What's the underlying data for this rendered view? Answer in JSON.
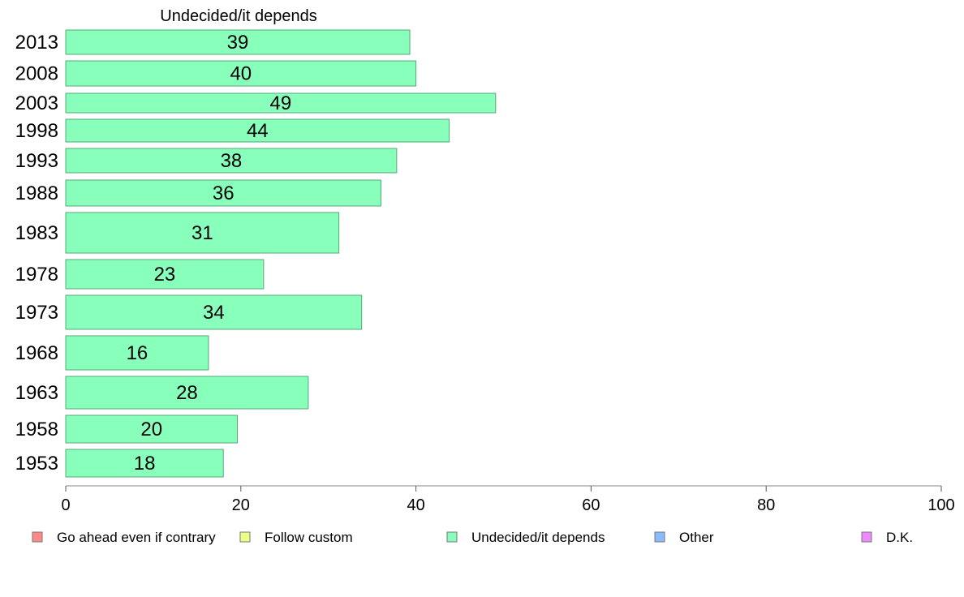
{
  "chart_data": {
    "type": "bar",
    "orientation": "horizontal",
    "title": "Undecided/it depends",
    "xlabel": "",
    "ylabel": "",
    "xlim": [
      0,
      100
    ],
    "xticks": [
      0,
      20,
      40,
      60,
      80,
      100
    ],
    "grid": false,
    "categories": [
      "2013",
      "2008",
      "2003",
      "1998",
      "1993",
      "1988",
      "1983",
      "1978",
      "1973",
      "1968",
      "1963",
      "1958",
      "1953"
    ],
    "series": [
      {
        "name": "Undecided/it depends",
        "color": "#88FFBB",
        "values": [
          39,
          40,
          49,
          44,
          38,
          36,
          31,
          23,
          34,
          16,
          28,
          20,
          18
        ],
        "exact_values": [
          39.3,
          40,
          49.1,
          43.8,
          37.8,
          36,
          31.2,
          22.6,
          33.8,
          16.3,
          27.7,
          19.6,
          18
        ]
      }
    ],
    "bar_stroke_color": "#55AA77",
    "legend": {
      "position": "bottom",
      "items": [
        {
          "label": "Go ahead even if contrary",
          "color": "#FF8888"
        },
        {
          "label": "Follow custom",
          "color": "#EEFF88"
        },
        {
          "label": "Undecided/it depends",
          "color": "#88FFBB"
        },
        {
          "label": "Other",
          "color": "#88BBFF"
        },
        {
          "label": "D.K.",
          "color": "#EE88FF"
        }
      ]
    }
  }
}
